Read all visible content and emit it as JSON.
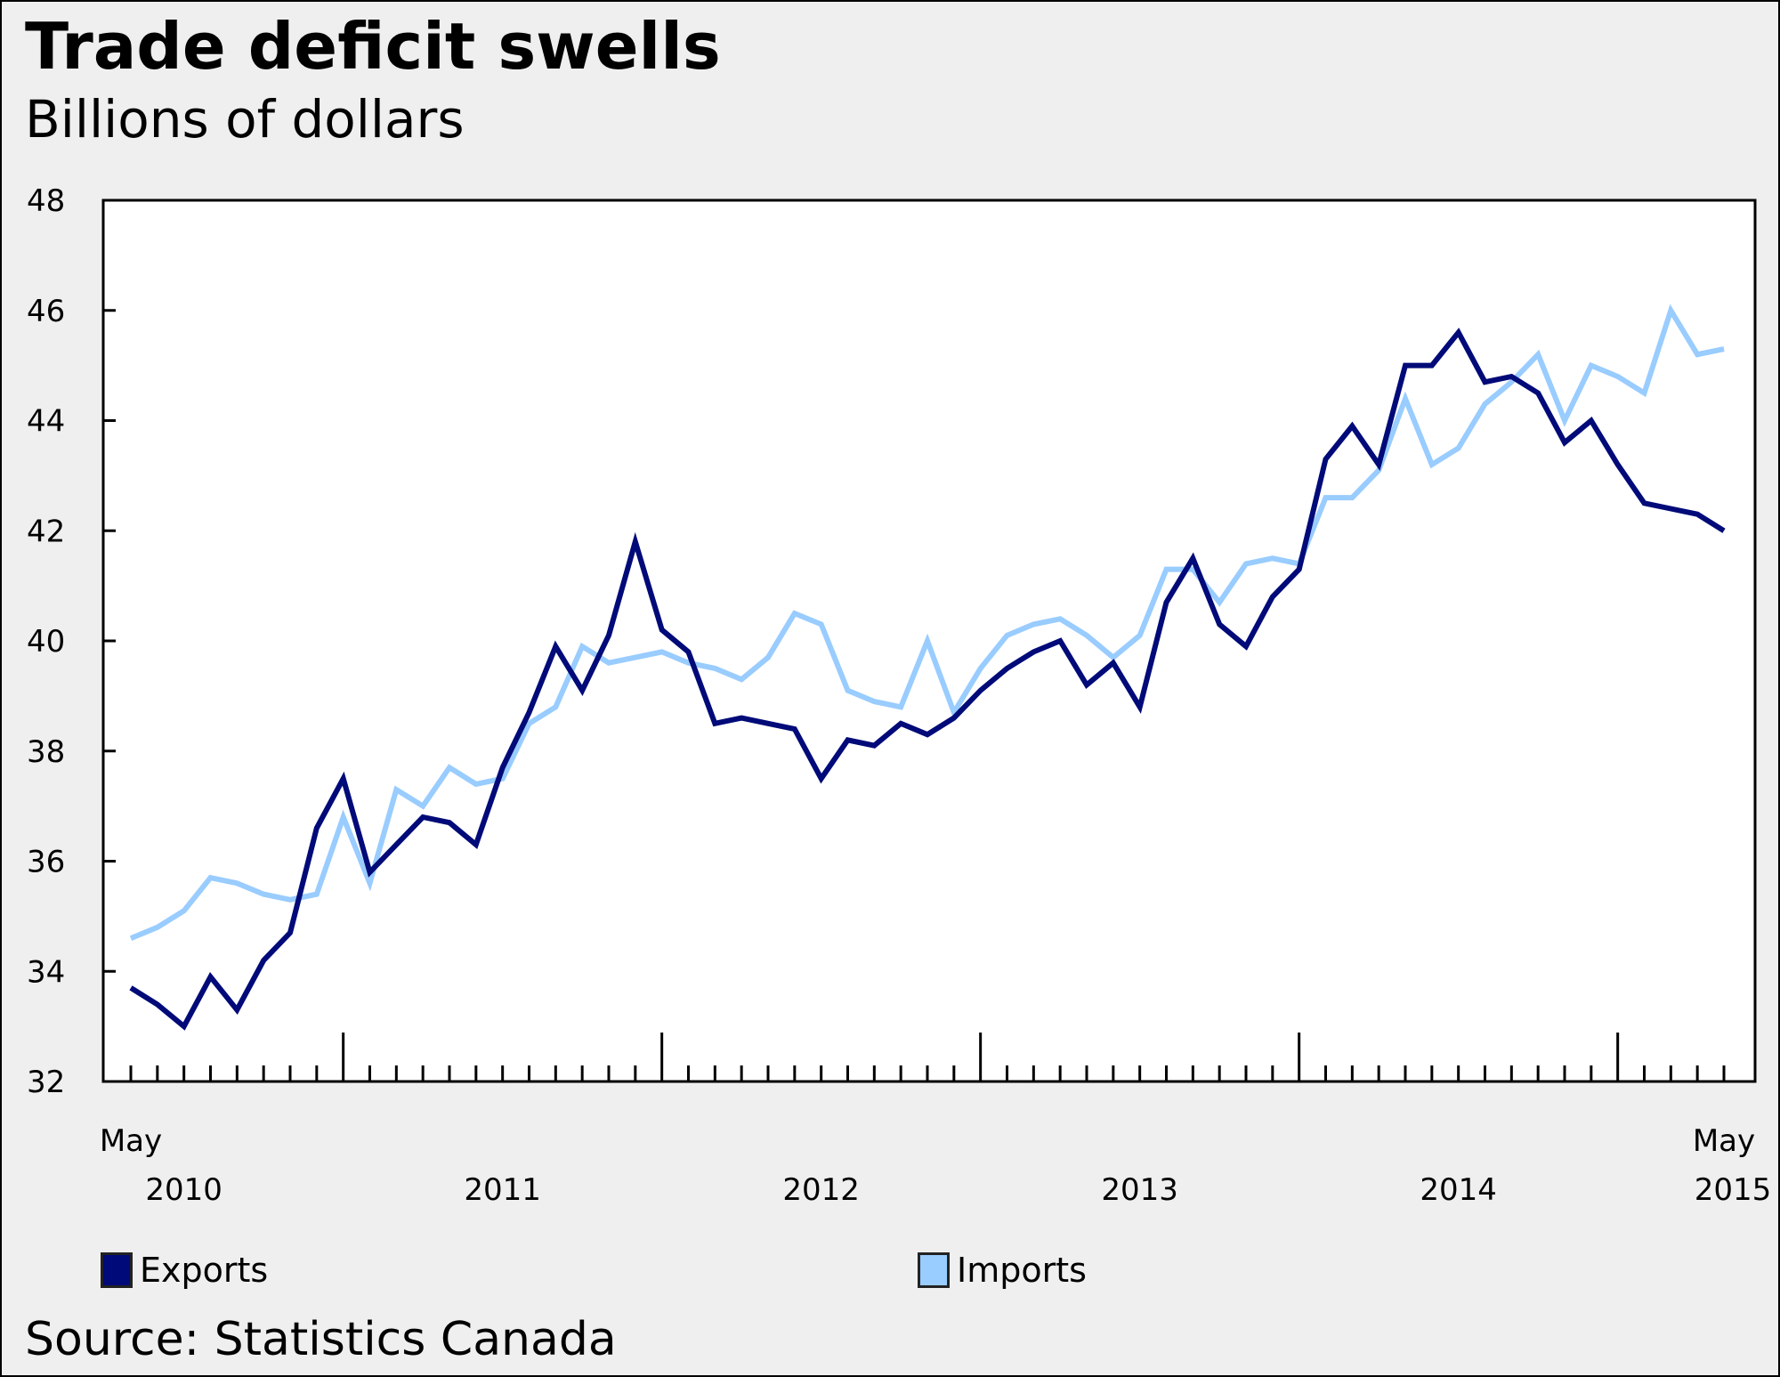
{
  "header": {
    "title": "Trade deficit swells",
    "subtitle": "Billions of dollars"
  },
  "footer": {
    "source": "Source: Statistics Canada"
  },
  "chart_data": {
    "type": "line",
    "title": "Trade deficit swells",
    "subtitle": "Billions of dollars",
    "xlabel": "",
    "ylabel": "Billions of dollars",
    "ylim": [
      32,
      48
    ],
    "yticks": [
      32,
      34,
      36,
      38,
      40,
      42,
      44,
      46,
      48
    ],
    "x_start": "May 2010",
    "x_end": "May 2015",
    "frequency": "monthly",
    "x_tick_labels": [
      {
        "index": 0,
        "month": "May",
        "year": "2010"
      },
      {
        "index": 20,
        "month": "",
        "year": "2011"
      },
      {
        "index": 32,
        "month": "",
        "year": "2012"
      },
      {
        "index": 44,
        "month": "",
        "year": "2013"
      },
      {
        "index": 56,
        "month": "",
        "year": "2014"
      },
      {
        "index": 60,
        "month": "May",
        "year": "2015"
      }
    ],
    "year_label_positions": {
      "2010": 2,
      "2011": 14,
      "2012": 26,
      "2013": 38,
      "2014": 50,
      "2015": 60
    },
    "year_boundaries": [
      8,
      20,
      32,
      44,
      56
    ],
    "grid": false,
    "legend_position": "bottom",
    "series": [
      {
        "name": "Exports",
        "color": "#000a78",
        "values": [
          33.7,
          33.4,
          33.0,
          33.9,
          33.3,
          34.2,
          34.7,
          36.6,
          37.5,
          35.8,
          36.3,
          36.8,
          36.7,
          36.3,
          37.7,
          38.7,
          39.9,
          39.1,
          40.1,
          41.8,
          40.2,
          39.8,
          38.5,
          38.6,
          38.5,
          38.4,
          37.5,
          38.2,
          38.1,
          38.5,
          38.3,
          38.6,
          39.1,
          39.5,
          39.8,
          40.0,
          39.2,
          39.6,
          38.8,
          40.7,
          41.5,
          40.3,
          39.9,
          40.8,
          41.3,
          43.3,
          43.9,
          43.2,
          45.0,
          45.0,
          45.6,
          44.7,
          44.8,
          44.5,
          43.6,
          44.0,
          43.2,
          42.5,
          42.4,
          42.3,
          42.0
        ]
      },
      {
        "name": "Imports",
        "color": "#99ccff",
        "values": [
          34.6,
          34.8,
          35.1,
          35.7,
          35.6,
          35.4,
          35.3,
          35.4,
          36.8,
          35.6,
          37.3,
          37.0,
          37.7,
          37.4,
          37.5,
          38.5,
          38.8,
          39.9,
          39.6,
          39.7,
          39.8,
          39.6,
          39.5,
          39.3,
          39.7,
          40.5,
          40.3,
          39.1,
          38.9,
          38.8,
          40.0,
          38.7,
          39.5,
          40.1,
          40.3,
          40.4,
          40.1,
          39.7,
          40.1,
          41.3,
          41.3,
          40.7,
          41.4,
          41.5,
          41.4,
          42.6,
          42.6,
          43.1,
          44.4,
          43.2,
          43.5,
          44.3,
          44.7,
          45.2,
          44.0,
          45.0,
          44.8,
          44.5,
          46.0,
          45.2,
          45.3
        ]
      }
    ]
  }
}
